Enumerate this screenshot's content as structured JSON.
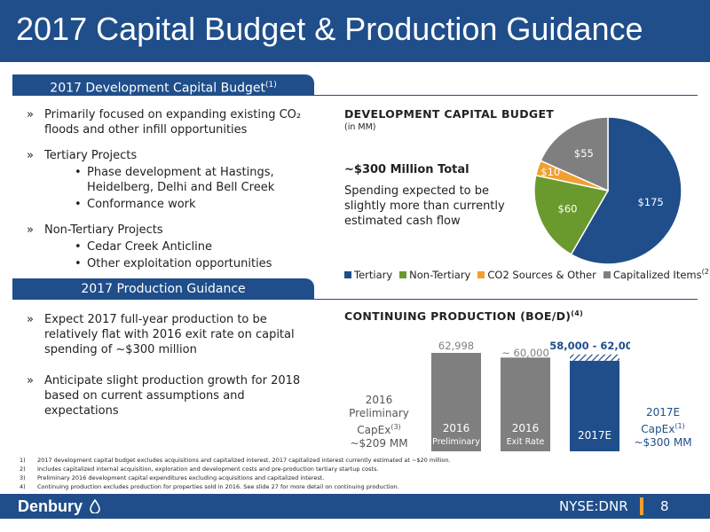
{
  "title": "2017 Capital Budget & Production Guidance",
  "capital_section": {
    "tab_label": "2017 Development Capital Budget",
    "tab_sup": "(1)",
    "bullets": [
      {
        "text": "Primarily focused on expanding existing CO₂ floods and other infill opportunities",
        "subs": []
      },
      {
        "text": "Tertiary Projects",
        "subs": [
          "Phase development at Hastings, Heidelberg, Delhi and Bell Creek",
          "Conformance work"
        ]
      },
      {
        "text": "Non-Tertiary Projects",
        "subs": [
          "Cedar Creek Anticline",
          "Other exploitation opportunities"
        ]
      }
    ],
    "heading": "DEVELOPMENT CAPITAL BUDGET",
    "units": "(in MM)",
    "total_label": "~$300 Million Total",
    "note": "Spending expected to be slightly more than currently estimated cash flow"
  },
  "production_section": {
    "tab_label": "2017 Production Guidance",
    "bullets": [
      {
        "text": "Expect 2017 full-year production to be relatively flat with 2016 exit rate on capital spending of ~$300 million"
      },
      {
        "text": "Anticipate slight production growth for 2018 based on current assumptions and expectations"
      }
    ],
    "heading": "CONTINUING PRODUCTION (BOE/D)",
    "heading_sup": "(4)",
    "left_label": {
      "line1": "2016",
      "line2": "Preliminary",
      "line3": "CapEx",
      "sup": "(3)",
      "line4": "~$209 MM"
    },
    "right_label": {
      "line1": "2017E",
      "line2": "CapEx",
      "sup": "(1)",
      "line3": "~$300 MM"
    }
  },
  "chart_data": [
    {
      "type": "pie",
      "title": "DEVELOPMENT CAPITAL BUDGET",
      "units": "(in MM)",
      "slices": [
        {
          "name": "Tertiary",
          "value": 175,
          "label": "$175",
          "color": "#1f4e8a"
        },
        {
          "name": "Non-Tertiary",
          "value": 60,
          "label": "$60",
          "color": "#6a9a2e"
        },
        {
          "name": "CO2 Sources & Other",
          "value": 10,
          "label": "$10",
          "color": "#f0a030"
        },
        {
          "name": "Capitalized Items",
          "value": 55,
          "label": "$55",
          "color": "#7f7f7f"
        }
      ],
      "legend": "bottom",
      "legend_sup": "(2)"
    },
    {
      "type": "bar",
      "title": "CONTINUING PRODUCTION (BOE/D)",
      "categories": [
        {
          "line1": "2016",
          "line2": "Preliminary"
        },
        {
          "line1": "2016",
          "line2": "Exit Rate"
        },
        {
          "line1": "2017E",
          "line2": ""
        }
      ],
      "values": [
        62998,
        60000,
        58000
      ],
      "range_high": [
        null,
        null,
        62000
      ],
      "value_labels": [
        "62,998",
        "~ 60,000",
        "58,000 - 62,000"
      ],
      "colors": [
        "#7f7f7f",
        "#7f7f7f",
        "#1f4e8a"
      ],
      "value_label_colors": [
        "#7f7f7f",
        "#7f7f7f",
        "#1f4e8a"
      ]
    }
  ],
  "footnotes": [
    {
      "n": "1)",
      "text": "2017 development capital budget excludes acquisitions and capitalized interest.  2017 capitalized interest currently estimated at ~$20 million."
    },
    {
      "n": "2)",
      "text": "Includes capitalized internal acquisition, exploration and development costs and pre-production tertiary startup costs."
    },
    {
      "n": "3)",
      "text": "Preliminary 2016 development capital expenditures excluding acquisitions and capitalized interest."
    },
    {
      "n": "4)",
      "text": "Continuing production excludes production for properties sold in 2016.  See slide 27 for more detail on continuing production."
    }
  ],
  "footer": {
    "logo": "Denbury",
    "ticker": "NYSE:DNR",
    "page": "8"
  }
}
